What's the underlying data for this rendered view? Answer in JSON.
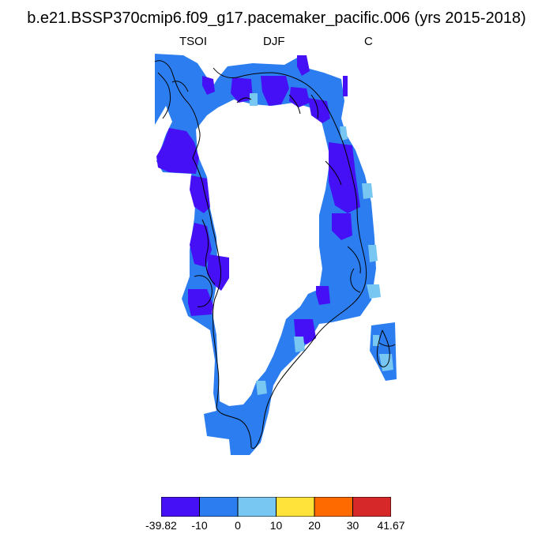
{
  "title": "b.e21.BSSP370cmip6.f09_g17.pacemaker_pacific.006 (yrs 2015-2018)",
  "subtitle": {
    "left": "TSOI",
    "center": "DJF",
    "right": "C"
  },
  "colorbar": {
    "labels": [
      "-39.82",
      "-10",
      "0",
      "10",
      "20",
      "30",
      "41.67"
    ],
    "colors": [
      "#4510f5",
      "#2c7ef0",
      "#78c6f2",
      "#ffe23a",
      "#ff6a00",
      "#d62828"
    ]
  },
  "palette": {
    "ocean": "#ffffff",
    "coast_line": "#000000",
    "map_background": "#ffffff"
  }
}
